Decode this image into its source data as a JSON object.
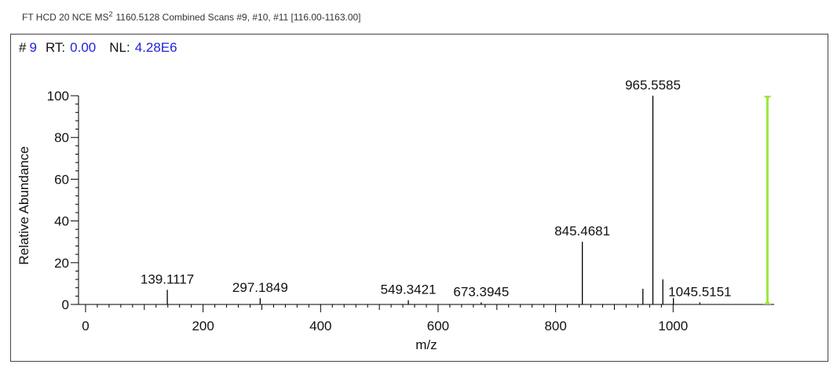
{
  "header": {
    "prefix": "FT HCD 20 NCE MS",
    "superscript": "2",
    "rest": "1160.5128 Combined Scans #9, #10, #11 [116.00-1163.00]"
  },
  "info": {
    "scan_label": "#",
    "scan": "9",
    "rt_label": "RT:",
    "rt": "0.00",
    "nl_label": "NL:",
    "nl": "4.28E6"
  },
  "chart_data": {
    "type": "spectrum",
    "x_label": "m/z",
    "y_label": "Relative Abundance",
    "x": [
      139.1117,
      297.1849,
      549.3421,
      673.3945,
      845.4681,
      948.5,
      965.5585,
      982.5,
      1000.5,
      1045.5151
    ],
    "values": [
      7,
      3,
      2,
      1,
      30,
      7.5,
      100,
      12,
      3,
      1
    ],
    "peak_labels": [
      "139.1117",
      "297.1849",
      "549.3421",
      "673.3945",
      "845.4681",
      null,
      "965.5585",
      null,
      null,
      "1045.5151"
    ],
    "color": "#000000",
    "precursor": {
      "mz": 1160.5128,
      "value": 100,
      "color": "#99e83a"
    },
    "xlim": [
      -12,
      1172
    ],
    "ylim": [
      0,
      100
    ],
    "xticks": [
      0,
      200,
      400,
      600,
      800,
      1000
    ],
    "yticks": [
      0,
      20,
      40,
      60,
      80,
      100
    ]
  }
}
